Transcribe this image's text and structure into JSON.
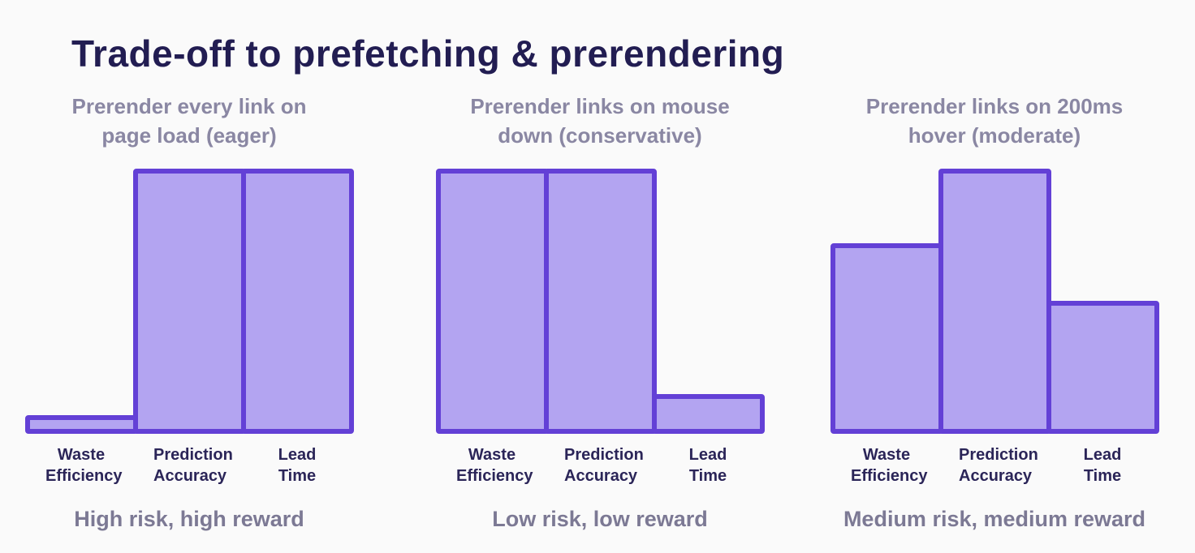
{
  "page": {
    "title": "Trade-off to prefetching & prerendering"
  },
  "colors": {
    "background": "#fafafa",
    "title": "#221d52",
    "header_text": "#8a87a3",
    "bar_fill": "#b3a4f1",
    "bar_border": "#6340d6",
    "label": "#2b2558",
    "caption": "#7c7994"
  },
  "chart_data": [
    {
      "type": "bar",
      "title": "Prerender every link on page load (eager)",
      "categories": [
        "Waste Efficiency",
        "Prediction Accuracy",
        "Lead Time"
      ],
      "values": [
        7,
        100,
        100
      ],
      "ylim": [
        0,
        100
      ],
      "grid": false,
      "legend": "none",
      "caption": "High risk, high reward"
    },
    {
      "type": "bar",
      "title": "Prerender links on mouse down (conservative)",
      "categories": [
        "Waste Efficiency",
        "Prediction Accuracy",
        "Lead Time"
      ],
      "values": [
        100,
        100,
        15
      ],
      "ylim": [
        0,
        100
      ],
      "grid": false,
      "legend": "none",
      "caption": "Low risk, low reward"
    },
    {
      "type": "bar",
      "title": "Prerender links on 200ms hover (moderate)",
      "categories": [
        "Waste Efficiency",
        "Prediction Accuracy",
        "Lead Time"
      ],
      "values": [
        72,
        100,
        50
      ],
      "ylim": [
        0,
        100
      ],
      "grid": false,
      "legend": "none",
      "caption": "Medium risk, medium reward"
    }
  ]
}
